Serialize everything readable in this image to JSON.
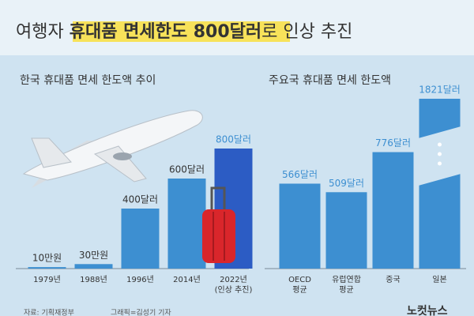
{
  "header": {
    "title_segments": [
      "여행자 ",
      "휴대품 면세한도 800달러",
      "로 인상 추진"
    ]
  },
  "chart_data": [
    {
      "type": "bar",
      "title": "한국 휴대품 면세 한도액 추이",
      "categories": [
        "1979년",
        "1988년",
        "1996년",
        "2014년",
        [
          "2022년",
          "(인상 추진)"
        ]
      ],
      "values": [
        10,
        30,
        400,
        600,
        800
      ],
      "value_labels": [
        "10만원",
        "30만원",
        "400달러",
        "600달러",
        "800달러"
      ],
      "colors": [
        "#3d8fd1",
        "#3d8fd1",
        "#3d8fd1",
        "#3d8fd1",
        "#2c5cc4"
      ],
      "label_colors": [
        "#333333",
        "#333333",
        "#333333",
        "#333333",
        "#3d8fd1"
      ]
    },
    {
      "type": "bar",
      "title": "주요국 휴대품 면세 한도액",
      "categories": [
        [
          "OECD",
          "평균"
        ],
        [
          "유럽연합",
          "평균"
        ],
        "중국",
        "일본"
      ],
      "values": [
        566,
        509,
        776,
        1821
      ],
      "value_labels": [
        "566달러",
        "509달러",
        "776달러",
        "1821달러"
      ],
      "colors": [
        "#3d8fd1",
        "#3d8fd1",
        "#3d8fd1",
        "#3d8fd1"
      ],
      "label_colors": [
        "#3d8fd1",
        "#3d8fd1",
        "#3d8fd1",
        "#3d8fd1"
      ]
    }
  ],
  "footer": {
    "source": "자료: 기획재정부",
    "credit": "그래픽=김성기 기자",
    "logo": "노컷뉴스"
  }
}
